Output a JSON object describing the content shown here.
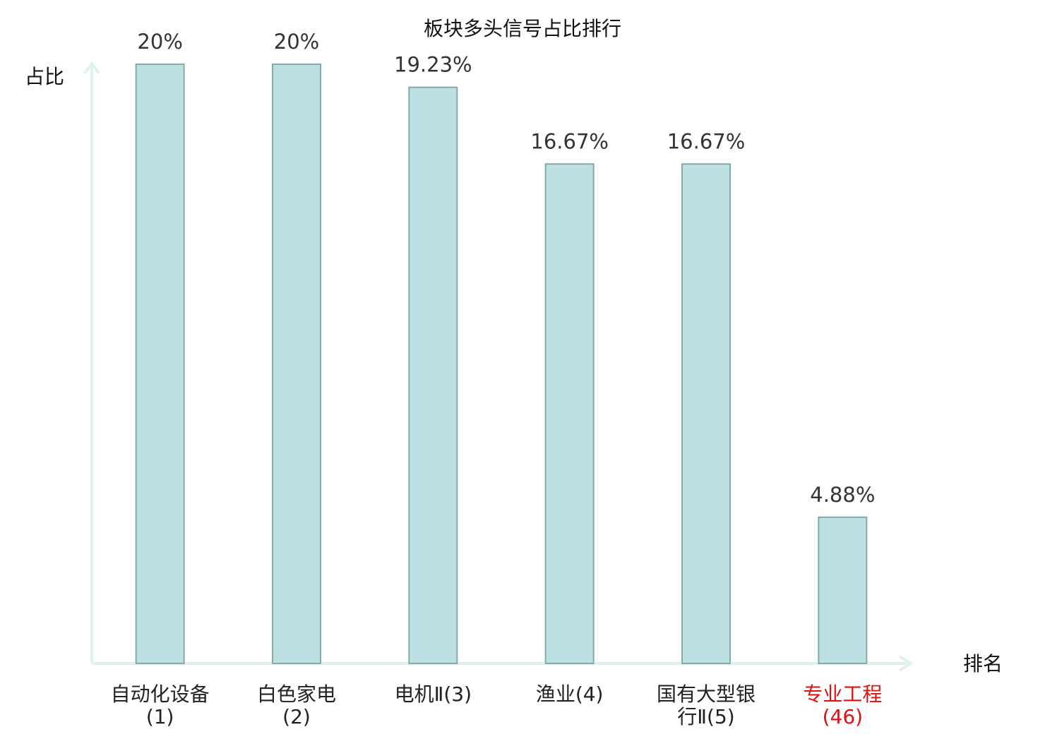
{
  "chart_data": {
    "type": "bar",
    "title": "板块多头信号占比排行",
    "y_label": "占比",
    "x_label": "排名",
    "categories": [
      "自动化设备(1)",
      "白色家电(2)",
      "电机Ⅱ(3)",
      "渔业(4)",
      "国有大型银行Ⅱ(5)",
      "专业工程(46)"
    ],
    "values": [
      20,
      20,
      19.23,
      16.67,
      16.67,
      4.88
    ],
    "value_labels": [
      "20%",
      "20%",
      "19.23%",
      "16.67%",
      "16.67%",
      "4.88%"
    ],
    "label_colors": [
      "#222222",
      "#222222",
      "#222222",
      "#222222",
      "#222222",
      "#e01010"
    ],
    "color": "#bde0e3",
    "edge_color": "#86a9ab",
    "ylim": [
      0,
      20
    ]
  }
}
